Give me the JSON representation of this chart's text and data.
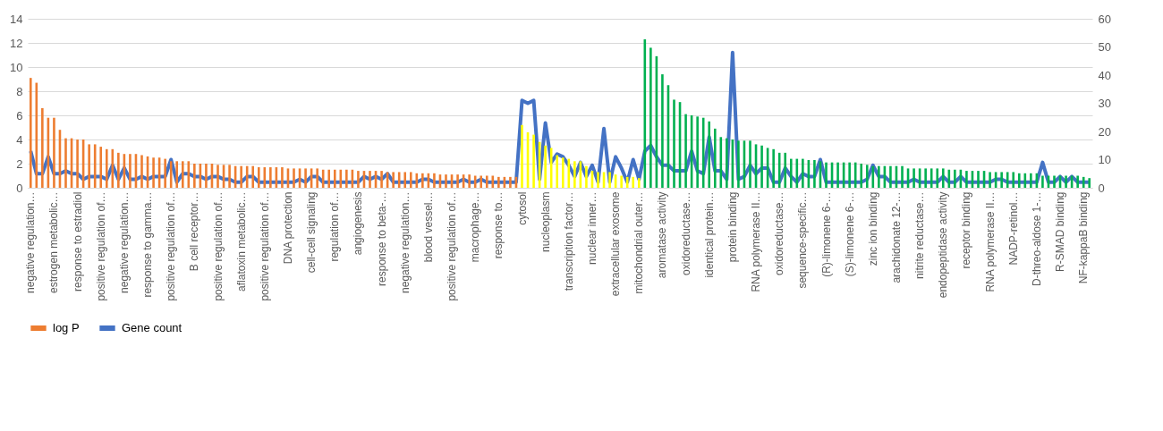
{
  "chart_data": {
    "type": "bar",
    "categories": [
      "negative regulation…",
      null,
      null,
      null,
      "estrogen metabolic…",
      null,
      null,
      null,
      "response to estradiol",
      null,
      null,
      null,
      "positive regulation of…",
      null,
      null,
      null,
      "negative regulation…",
      null,
      null,
      null,
      "response to gamma…",
      null,
      null,
      null,
      "positive regulation of…",
      null,
      null,
      null,
      "B cell receptor…",
      null,
      null,
      null,
      "positive regulation of…",
      null,
      null,
      null,
      "aflatoxin metabolic…",
      null,
      null,
      null,
      "positive regulation of…",
      null,
      null,
      null,
      "DNA protection",
      null,
      null,
      null,
      "cell-cell signaling",
      null,
      null,
      null,
      "regulation of…",
      null,
      null,
      null,
      "angiogenesis",
      null,
      null,
      null,
      "response to beta-…",
      null,
      null,
      null,
      "negative regulation…",
      null,
      null,
      null,
      "blood vessel…",
      null,
      null,
      null,
      "positive regulation of…",
      null,
      null,
      null,
      "macrophage…",
      null,
      null,
      null,
      "response to…",
      null,
      null,
      null,
      "cytosol",
      null,
      null,
      null,
      "nucleoplasm",
      null,
      null,
      null,
      "transcription factor…",
      null,
      null,
      null,
      "nuclear inner…",
      null,
      null,
      null,
      "extracellular exosome",
      null,
      null,
      null,
      "mitochondrial outer…",
      null,
      null,
      null,
      "aromatase activity",
      null,
      null,
      null,
      "oxidoreductase…",
      null,
      null,
      null,
      "identical protein…",
      null,
      null,
      null,
      "protein binding",
      null,
      null,
      null,
      "RNA polymerase II…",
      null,
      null,
      null,
      "oxidoreductase…",
      null,
      null,
      null,
      "sequence-specific…",
      null,
      null,
      null,
      "(R)-limonene 6-…",
      null,
      null,
      null,
      "(S)-limonene 6-…",
      null,
      null,
      null,
      "zinc ion binding",
      null,
      null,
      null,
      "arachidonate 12-…",
      null,
      null,
      null,
      "nitrite reductase…",
      null,
      null,
      null,
      "endopeptidase activity",
      null,
      null,
      null,
      "receptor binding",
      null,
      null,
      null,
      "RNA polymerase II…",
      null,
      null,
      null,
      "NADP-retinol…",
      null,
      null,
      null,
      "D-threo-aldose 1-…",
      null,
      null,
      null,
      "R-SMAD binding",
      null,
      null,
      null,
      "NF-kappaB binding",
      null
    ],
    "series": [
      {
        "name": "log P",
        "color": "#ed7d31",
        "colors": [
          "#ed7d31",
          "#ed7d31",
          "#ed7d31",
          "#ed7d31",
          "#ed7d31",
          "#ed7d31",
          "#ed7d31",
          "#ed7d31",
          "#ed7d31",
          "#ed7d31",
          "#ed7d31",
          "#ed7d31",
          "#ed7d31",
          "#ed7d31",
          "#ed7d31",
          "#ed7d31",
          "#ed7d31",
          "#ed7d31",
          "#ed7d31",
          "#ed7d31",
          "#ed7d31",
          "#ed7d31",
          "#ed7d31",
          "#ed7d31",
          "#ed7d31",
          "#ed7d31",
          "#ed7d31",
          "#ed7d31",
          "#ed7d31",
          "#ed7d31",
          "#ed7d31",
          "#ed7d31",
          "#ed7d31",
          "#ed7d31",
          "#ed7d31",
          "#ed7d31",
          "#ed7d31",
          "#ed7d31",
          "#ed7d31",
          "#ed7d31",
          "#ed7d31",
          "#ed7d31",
          "#ed7d31",
          "#ed7d31",
          "#ed7d31",
          "#ed7d31",
          "#ed7d31",
          "#ed7d31",
          "#ed7d31",
          "#ed7d31",
          "#ed7d31",
          "#ed7d31",
          "#ed7d31",
          "#ed7d31",
          "#ed7d31",
          "#ed7d31",
          "#ed7d31",
          "#ed7d31",
          "#ed7d31",
          "#ed7d31",
          "#ed7d31",
          "#ed7d31",
          "#ed7d31",
          "#ed7d31",
          "#ed7d31",
          "#ed7d31",
          "#ed7d31",
          "#ed7d31",
          "#ed7d31",
          "#ed7d31",
          "#ed7d31",
          "#ed7d31",
          "#ed7d31",
          "#ed7d31",
          "#ed7d31",
          "#ed7d31",
          "#ed7d31",
          "#ed7d31",
          "#ed7d31",
          "#ed7d31",
          "#ed7d31",
          "#ed7d31",
          "#ed7d31",
          "#ed7d31",
          "#ffff00",
          "#ffff00",
          "#ffff00",
          "#ffff00",
          "#ffff00",
          "#ffff00",
          "#ffff00",
          "#ffff00",
          "#ffff00",
          "#ffff00",
          "#ffff00",
          "#ffff00",
          "#ffff00",
          "#ffff00",
          "#ffff00",
          "#ffff00",
          "#ffff00",
          "#ffff00",
          "#ffff00",
          "#ffff00",
          "#ffff00",
          "#00b050",
          "#00b050",
          "#00b050",
          "#00b050",
          "#00b050",
          "#00b050",
          "#00b050",
          "#00b050",
          "#00b050",
          "#00b050",
          "#00b050",
          "#00b050",
          "#00b050",
          "#00b050",
          "#00b050",
          "#00b050",
          "#00b050",
          "#00b050",
          "#00b050",
          "#00b050",
          "#00b050",
          "#00b050",
          "#00b050",
          "#00b050",
          "#00b050",
          "#00b050",
          "#00b050",
          "#00b050",
          "#00b050",
          "#00b050",
          "#00b050",
          "#00b050",
          "#00b050",
          "#00b050",
          "#00b050",
          "#00b050",
          "#00b050",
          "#00b050",
          "#00b050",
          "#00b050",
          "#00b050",
          "#00b050",
          "#00b050",
          "#00b050",
          "#00b050",
          "#00b050",
          "#00b050",
          "#00b050",
          "#00b050",
          "#00b050",
          "#00b050",
          "#00b050",
          "#00b050",
          "#00b050",
          "#00b050",
          "#00b050",
          "#00b050",
          "#00b050",
          "#00b050",
          "#00b050",
          "#00b050",
          "#00b050",
          "#00b050",
          "#00b050",
          "#00b050",
          "#00b050",
          "#00b050",
          "#00b050",
          "#00b050",
          "#00b050",
          "#00b050",
          "#00b050",
          "#00b050",
          "#00b050",
          "#00b050",
          "#00b050",
          "#00b050"
        ],
        "values": [
          9.1,
          8.7,
          6.6,
          5.8,
          5.8,
          4.8,
          4.1,
          4.1,
          4.0,
          4.0,
          3.6,
          3.6,
          3.4,
          3.2,
          3.2,
          2.9,
          2.8,
          2.8,
          2.8,
          2.7,
          2.6,
          2.5,
          2.5,
          2.4,
          2.2,
          2.2,
          2.2,
          2.2,
          2.0,
          2.0,
          2.0,
          2.0,
          1.9,
          1.9,
          1.9,
          1.8,
          1.8,
          1.8,
          1.8,
          1.7,
          1.7,
          1.7,
          1.7,
          1.7,
          1.6,
          1.6,
          1.6,
          1.6,
          1.6,
          1.6,
          1.5,
          1.5,
          1.5,
          1.5,
          1.5,
          1.5,
          1.4,
          1.4,
          1.4,
          1.4,
          1.4,
          1.3,
          1.3,
          1.3,
          1.3,
          1.3,
          1.2,
          1.2,
          1.2,
          1.2,
          1.1,
          1.1,
          1.1,
          1.1,
          1.1,
          1.1,
          1.0,
          1.0,
          1.0,
          1.0,
          0.9,
          0.9,
          0.9,
          0.9,
          5.2,
          4.6,
          4.4,
          3.8,
          3.5,
          3.3,
          2.7,
          2.5,
          2.4,
          2.2,
          2.2,
          1.8,
          1.4,
          1.3,
          1.3,
          1.3,
          1.1,
          1.0,
          0.9,
          0.9,
          0.8,
          12.3,
          11.6,
          10.9,
          9.4,
          8.5,
          7.3,
          7.1,
          6.1,
          6.0,
          5.9,
          5.8,
          5.5,
          4.9,
          4.2,
          4.1,
          4.0,
          3.9,
          3.9,
          3.9,
          3.6,
          3.5,
          3.3,
          3.2,
          2.9,
          2.9,
          2.4,
          2.4,
          2.4,
          2.3,
          2.3,
          2.2,
          2.1,
          2.1,
          2.1,
          2.1,
          2.1,
          2.1,
          2.0,
          1.9,
          1.8,
          1.8,
          1.8,
          1.8,
          1.8,
          1.8,
          1.6,
          1.6,
          1.6,
          1.6,
          1.6,
          1.6,
          1.6,
          1.5,
          1.5,
          1.5,
          1.4,
          1.4,
          1.4,
          1.4,
          1.3,
          1.3,
          1.3,
          1.3,
          1.3,
          1.2,
          1.2,
          1.2,
          1.2,
          1.0,
          1.0,
          1.0,
          1.0,
          1.0,
          1.0,
          1.0,
          0.9,
          0.8
        ]
      },
      {
        "name": "Gene count",
        "type": "line",
        "axis": "y2",
        "color": "#4472c4",
        "values": [
          13,
          5,
          5,
          11,
          5,
          5,
          6,
          5,
          5,
          3,
          4,
          4,
          4,
          3,
          8,
          3,
          7,
          3,
          3,
          4,
          3,
          4,
          4,
          4,
          10,
          2,
          5,
          5,
          4,
          4,
          3,
          4,
          4,
          3,
          3,
          2,
          2,
          4,
          4,
          2,
          2,
          2,
          2,
          2,
          2,
          2,
          3,
          2,
          4,
          4,
          2,
          2,
          2,
          2,
          2,
          2,
          2,
          4,
          3,
          4,
          3,
          5,
          2,
          2,
          2,
          2,
          2,
          3,
          3,
          2,
          2,
          2,
          2,
          2,
          3,
          2,
          2,
          3,
          2,
          2,
          2,
          2,
          2,
          2,
          31,
          30,
          31,
          3,
          23,
          9,
          12,
          11,
          8,
          4,
          9,
          4,
          8,
          2,
          21,
          2,
          11,
          7,
          2,
          10,
          3,
          13,
          15,
          11,
          8,
          8,
          6,
          6,
          6,
          13,
          6,
          5,
          18,
          6,
          6,
          3,
          48,
          3,
          4,
          8,
          5,
          7,
          7,
          2,
          2,
          7,
          4,
          2,
          5,
          4,
          4,
          10,
          2,
          2,
          2,
          2,
          2,
          2,
          2,
          3,
          8,
          4,
          4,
          2,
          2,
          2,
          2,
          3,
          2,
          2,
          2,
          2,
          4,
          2,
          2,
          4,
          2,
          2,
          2,
          2,
          2,
          3,
          3,
          2,
          2,
          2,
          2,
          2,
          2,
          9,
          2,
          2,
          4,
          2,
          4,
          2,
          2,
          2
        ]
      }
    ],
    "ylim": [
      0,
      14
    ],
    "yticks": [
      0,
      2,
      4,
      6,
      8,
      10,
      12,
      14
    ],
    "y2lim": [
      0,
      60
    ],
    "y2ticks": [
      0,
      10,
      20,
      30,
      40,
      50,
      60
    ],
    "grid": "y",
    "legend": "bottom",
    "marker": "none",
    "line_style": "solid"
  }
}
